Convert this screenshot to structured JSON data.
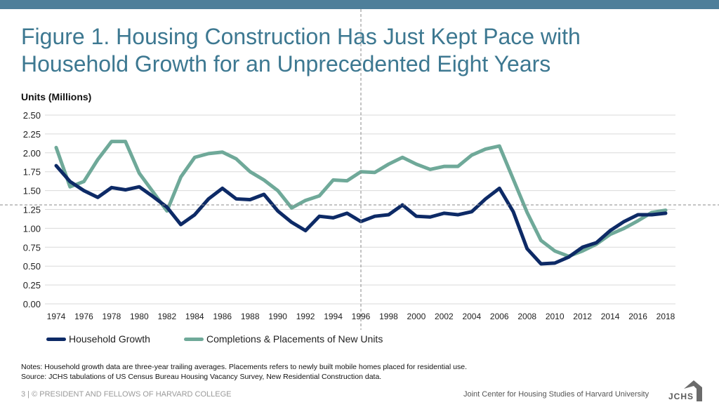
{
  "title_lines": [
    "Figure 1. Housing Construction Has Just Kept Pace with",
    "Household Growth for an Unprecedented Eight Years"
  ],
  "colors": {
    "household": "#0d2a66",
    "completions": "#6fa999",
    "accent": "#4e7f9a",
    "grid": "#d9d9d9"
  },
  "legend": {
    "household": "Household Growth",
    "completions": "Completions & Placements of New Units"
  },
  "notes": [
    "Notes: Household growth data are three-year trailing averages. Placements refers to newly built mobile homes placed for residential use.",
    "Source: JCHS tabulations of US Census Bureau Housing Vacancy Survey, New Residential Construction data."
  ],
  "footer": {
    "left": "3 | © PRESIDENT AND FELLOWS OF HARVARD COLLEGE",
    "right": "Joint Center for Housing Studies of Harvard University",
    "logo_text": "JCHS"
  },
  "chart_data": {
    "type": "line",
    "ylabel": "Units (Millions)",
    "ylim": [
      0,
      2.5
    ],
    "y_ticks": [
      "0.00",
      "0.25",
      "0.50",
      "0.75",
      "1.00",
      "1.25",
      "1.50",
      "1.75",
      "2.00",
      "2.25",
      "2.50"
    ],
    "x_ticks": [
      "1974",
      "1976",
      "1978",
      "1980",
      "1982",
      "1984",
      "1986",
      "1988",
      "1990",
      "1992",
      "1994",
      "1996",
      "1998",
      "2000",
      "2002",
      "2004",
      "2006",
      "2008",
      "2010",
      "2012",
      "2014",
      "2016",
      "2018"
    ],
    "grid": true,
    "legend_position": "bottom-left",
    "x": [
      1974,
      1975,
      1976,
      1977,
      1978,
      1979,
      1980,
      1981,
      1982,
      1983,
      1984,
      1985,
      1986,
      1987,
      1988,
      1989,
      1990,
      1991,
      1992,
      1993,
      1994,
      1995,
      1996,
      1997,
      1998,
      1999,
      2000,
      2001,
      2002,
      2003,
      2004,
      2005,
      2006,
      2007,
      2008,
      2009,
      2010,
      2011,
      2012,
      2013,
      2014,
      2015,
      2016,
      2017,
      2018
    ],
    "series": [
      {
        "name": "Household Growth",
        "values": [
          1.83,
          1.62,
          1.5,
          1.41,
          1.54,
          1.51,
          1.55,
          1.42,
          1.28,
          1.05,
          1.18,
          1.39,
          1.53,
          1.39,
          1.38,
          1.45,
          1.23,
          1.08,
          0.97,
          1.16,
          1.14,
          1.2,
          1.09,
          1.16,
          1.18,
          1.31,
          1.16,
          1.15,
          1.2,
          1.18,
          1.22,
          1.39,
          1.53,
          1.22,
          0.73,
          0.53,
          0.54,
          0.62,
          0.75,
          0.81,
          0.97,
          1.09,
          1.18,
          1.18,
          1.2
        ]
      },
      {
        "name": "Completions & Placements of New Units",
        "values": [
          2.07,
          1.55,
          1.62,
          1.91,
          2.15,
          2.15,
          1.73,
          1.48,
          1.23,
          1.68,
          1.94,
          1.99,
          2.01,
          1.92,
          1.75,
          1.64,
          1.5,
          1.27,
          1.37,
          1.43,
          1.64,
          1.63,
          1.75,
          1.74,
          1.85,
          1.94,
          1.85,
          1.78,
          1.82,
          1.82,
          1.97,
          2.05,
          2.09,
          1.65,
          1.21,
          0.84,
          0.7,
          0.63,
          0.7,
          0.79,
          0.92,
          1.0,
          1.1,
          1.21,
          1.24
        ]
      }
    ]
  }
}
